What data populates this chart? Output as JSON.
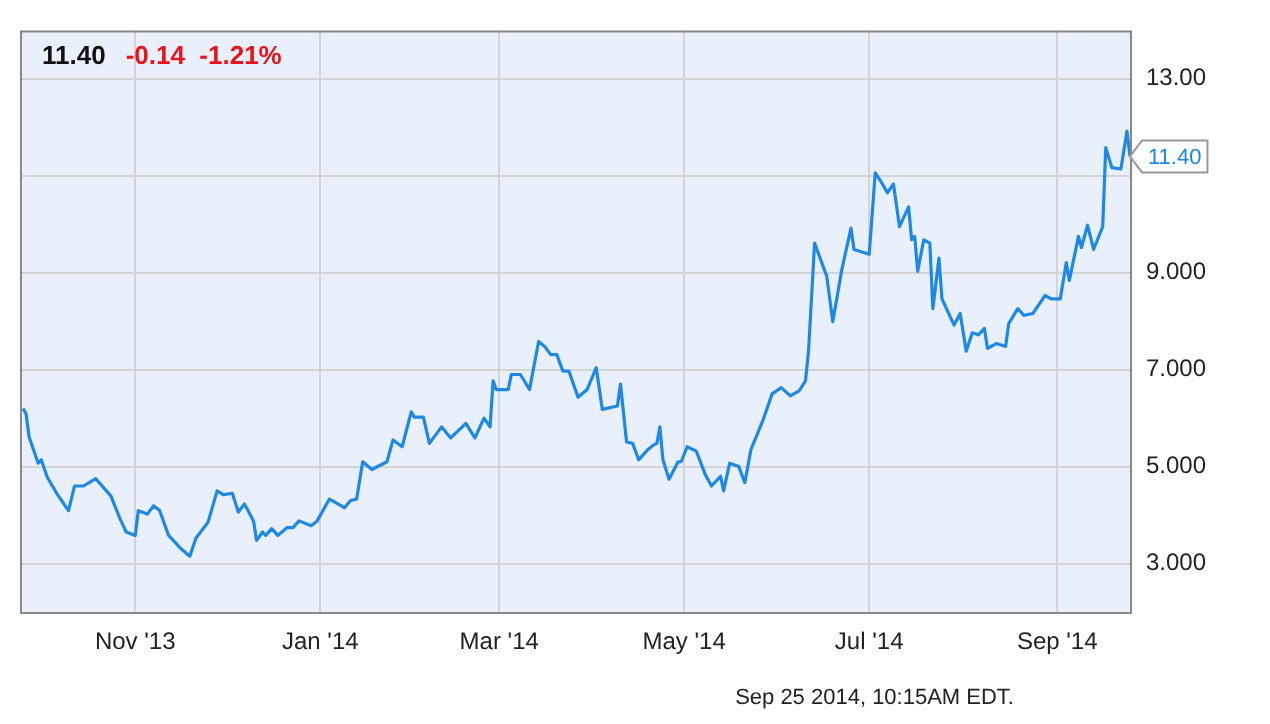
{
  "chart_data": {
    "type": "line",
    "title": "11.40",
    "subtitle": "-0.14  -1.21%",
    "annotations": [
      "Sep 25 2014, 10:15AM EDT.",
      {
        "text": "11.40",
        "x": "2014-09-25",
        "y": 11.4
      }
    ],
    "xlim": [
      "2013-09-24",
      "2014-09-25"
    ],
    "xticks": [
      {
        "value": "2013-11-01",
        "label": "Nov '13"
      },
      {
        "value": "2014-01-01",
        "label": "Jan '14"
      },
      {
        "value": "2014-03-01",
        "label": "Mar '14"
      },
      {
        "value": "2014-05-01",
        "label": "May '14"
      },
      {
        "value": "2014-07-01",
        "label": "Jul '14"
      },
      {
        "value": "2014-09-01",
        "label": "Sep '14"
      }
    ],
    "ylim": [
      2,
      14
    ],
    "yticks": [
      {
        "value": 3,
        "label": "3.000"
      },
      {
        "value": 5,
        "label": "5.000"
      },
      {
        "value": 7,
        "label": "7.000"
      },
      {
        "value": 9,
        "label": "9.000"
      },
      {
        "value": 11,
        "label": null
      },
      {
        "value": 13,
        "label": "13.00"
      }
    ],
    "grid": true,
    "legend": false,
    "series": [
      {
        "color": "#1e88e5",
        "x": [
          "2013-09-25",
          "2013-09-26",
          "2013-09-27",
          "2013-09-30",
          "2013-10-01",
          "2013-10-03",
          "2013-10-06",
          "2013-10-10",
          "2013-10-12",
          "2013-10-15",
          "2013-10-19",
          "2013-10-24",
          "2013-10-27",
          "2013-10-29",
          "2013-11-01",
          "2013-11-02",
          "2013-11-05",
          "2013-11-07",
          "2013-11-09",
          "2013-11-12",
          "2013-11-16",
          "2013-11-19",
          "2013-11-21",
          "2013-11-25",
          "2013-11-28",
          "2013-11-30",
          "2013-12-03",
          "2013-12-05",
          "2013-12-07",
          "2013-12-10",
          "2013-12-11",
          "2013-12-13",
          "2013-12-14",
          "2013-12-16",
          "2013-12-18",
          "2013-12-21",
          "2013-12-23",
          "2013-12-25",
          "2013-12-29",
          "2013-12-31",
          "2014-01-04",
          "2014-01-08",
          "2014-01-09",
          "2014-01-11",
          "2014-01-13",
          "2014-01-15",
          "2014-01-18",
          "2014-01-23",
          "2014-01-25",
          "2014-01-28",
          "2014-01-31",
          "2014-02-01",
          "2014-02-04",
          "2014-02-06",
          "2014-02-10",
          "2014-02-13",
          "2014-02-18",
          "2014-02-21",
          "2014-02-24",
          "2014-02-26",
          "2014-02-27",
          "2014-02-28",
          "2014-03-04",
          "2014-03-05",
          "2014-03-08",
          "2014-03-11",
          "2014-03-14",
          "2014-03-16",
          "2014-03-18",
          "2014-03-20",
          "2014-03-22",
          "2014-03-24",
          "2014-03-27",
          "2014-03-30",
          "2014-04-02",
          "2014-04-04",
          "2014-04-09",
          "2014-04-10",
          "2014-04-12",
          "2014-04-14",
          "2014-04-16",
          "2014-04-19",
          "2014-04-21",
          "2014-04-22",
          "2014-04-23",
          "2014-04-24",
          "2014-04-26",
          "2014-04-29",
          "2014-04-30",
          "2014-05-02",
          "2014-05-05",
          "2014-05-08",
          "2014-05-10",
          "2014-05-13",
          "2014-05-14",
          "2014-05-16",
          "2014-05-19",
          "2014-05-21",
          "2014-05-23",
          "2014-05-27",
          "2014-05-30",
          "2014-06-02",
          "2014-06-05",
          "2014-06-08",
          "2014-06-10",
          "2014-06-11",
          "2014-06-13",
          "2014-06-17",
          "2014-06-19",
          "2014-06-22",
          "2014-06-25",
          "2014-06-26",
          "2014-07-01",
          "2014-07-03",
          "2014-07-05",
          "2014-07-07",
          "2014-07-09",
          "2014-07-11",
          "2014-07-14",
          "2014-07-15",
          "2014-07-16",
          "2014-07-17",
          "2014-07-19",
          "2014-07-21",
          "2014-07-22",
          "2014-07-24",
          "2014-07-25",
          "2014-07-29",
          "2014-07-31",
          "2014-08-02",
          "2014-08-04",
          "2014-08-06",
          "2014-08-08",
          "2014-08-09",
          "2014-08-12",
          "2014-08-15",
          "2014-08-16",
          "2014-08-19",
          "2014-08-21",
          "2014-08-24",
          "2014-08-28",
          "2014-08-30",
          "2014-09-02",
          "2014-09-04",
          "2014-09-05",
          "2014-09-08",
          "2014-09-09",
          "2014-09-11",
          "2014-09-13",
          "2014-09-16",
          "2014-09-17",
          "2014-09-19",
          "2014-09-22",
          "2014-09-24",
          "2014-09-25"
        ],
        "values": [
          6.2,
          6.09,
          5.61,
          5.07,
          5.14,
          4.78,
          4.46,
          4.09,
          4.6,
          4.6,
          4.75,
          4.39,
          3.92,
          3.65,
          3.58,
          4.09,
          4.02,
          4.19,
          4.1,
          3.58,
          3.31,
          3.15,
          3.52,
          3.85,
          4.5,
          4.42,
          4.45,
          4.06,
          4.23,
          3.88,
          3.48,
          3.65,
          3.58,
          3.72,
          3.58,
          3.74,
          3.74,
          3.88,
          3.78,
          3.88,
          4.33,
          4.19,
          4.15,
          4.3,
          4.33,
          5.1,
          4.94,
          5.1,
          5.55,
          5.41,
          6.13,
          6.02,
          6.02,
          5.48,
          5.82,
          5.59,
          5.89,
          5.59,
          6.0,
          5.82,
          6.77,
          6.59,
          6.59,
          6.9,
          6.9,
          6.59,
          7.58,
          7.48,
          7.31,
          7.31,
          6.97,
          6.97,
          6.43,
          6.59,
          7.04,
          6.18,
          6.25,
          6.7,
          5.51,
          5.48,
          5.14,
          5.35,
          5.45,
          5.48,
          5.82,
          5.14,
          4.74,
          5.1,
          5.1,
          5.41,
          5.32,
          4.83,
          4.6,
          4.8,
          4.5,
          5.07,
          5.0,
          4.67,
          5.35,
          5.96,
          6.5,
          6.63,
          6.46,
          6.57,
          6.77,
          7.38,
          9.61,
          8.93,
          7.99,
          9.07,
          9.92,
          9.48,
          9.38,
          11.06,
          10.87,
          10.65,
          10.83,
          9.95,
          10.36,
          9.68,
          9.75,
          9.03,
          9.68,
          9.61,
          8.26,
          9.3,
          8.46,
          7.92,
          8.16,
          7.38,
          7.76,
          7.72,
          7.85,
          7.44,
          7.54,
          7.48,
          7.95,
          8.26,
          8.12,
          8.16,
          8.53,
          8.46,
          8.46,
          9.21,
          8.84,
          9.75,
          9.52,
          9.98,
          9.48,
          9.95,
          11.58,
          11.17,
          11.14,
          11.92,
          11.4
        ]
      }
    ]
  }
}
